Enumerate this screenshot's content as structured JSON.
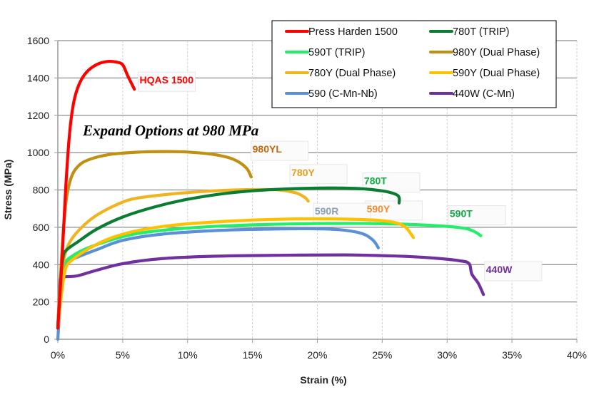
{
  "chart_data": {
    "type": "line",
    "title": "",
    "annotation_title": "Expand Options at 980 MPa",
    "xlabel": "Strain (%)",
    "ylabel": "Stress (MPa)",
    "xlim": [
      0,
      40
    ],
    "ylim": [
      0,
      1600
    ],
    "x_ticks": [
      0,
      5,
      10,
      15,
      20,
      25,
      30,
      35,
      40
    ],
    "x_tick_labels": [
      "0%",
      "5%",
      "10%",
      "15%",
      "20%",
      "25%",
      "30%",
      "35%",
      "40%"
    ],
    "y_ticks": [
      0,
      200,
      400,
      600,
      800,
      1000,
      1200,
      1400,
      1600
    ],
    "y_tick_labels": [
      "0",
      "200",
      "400",
      "600",
      "800",
      "1000",
      "1200",
      "1400",
      "1600"
    ],
    "grid": {
      "horizontal": true,
      "vertical": true
    },
    "legend_position": "top-right",
    "series": [
      {
        "name": "Press Harden 1500",
        "label": "HQAS 1500",
        "color": "#ff0000",
        "label_color": "#ff0000",
        "label_at": [
          6.3,
          1370
        ],
        "points": [
          [
            0.0,
            60
          ],
          [
            0.3,
            400
          ],
          [
            0.6,
            800
          ],
          [
            0.9,
            1100
          ],
          [
            1.2,
            1260
          ],
          [
            1.6,
            1360
          ],
          [
            2.2,
            1430
          ],
          [
            3.0,
            1472
          ],
          [
            3.8,
            1488
          ],
          [
            4.5,
            1485
          ],
          [
            5.0,
            1470
          ],
          [
            5.4,
            1410
          ],
          [
            5.9,
            1340
          ]
        ]
      },
      {
        "name": "780T (TRIP)",
        "label": "780T",
        "color": "#0a7d32",
        "label_color": "#12b24a",
        "label_at": [
          23.6,
          830
        ],
        "points": [
          [
            0.0,
            60
          ],
          [
            0.2,
            300
          ],
          [
            0.4,
            440
          ],
          [
            0.7,
            480
          ],
          [
            1.5,
            520
          ],
          [
            3,
            590
          ],
          [
            5,
            655
          ],
          [
            7.5,
            710
          ],
          [
            10,
            750
          ],
          [
            13,
            782
          ],
          [
            16,
            800
          ],
          [
            20,
            810
          ],
          [
            23,
            808
          ],
          [
            25,
            795
          ],
          [
            26,
            778
          ],
          [
            26.3,
            760
          ],
          [
            26.3,
            730
          ]
        ]
      },
      {
        "name": "590T (TRIP)",
        "label": "590T",
        "color": "#22ee6a",
        "label_color": "#12a84a",
        "label_at": [
          30.2,
          655
        ],
        "points": [
          [
            0.0,
            60
          ],
          [
            0.2,
            300
          ],
          [
            0.4,
            390
          ],
          [
            0.8,
            430
          ],
          [
            2,
            480
          ],
          [
            4,
            530
          ],
          [
            6,
            565
          ],
          [
            9,
            590
          ],
          [
            13,
            608
          ],
          [
            18,
            618
          ],
          [
            24,
            620
          ],
          [
            28,
            613
          ],
          [
            31,
            598
          ],
          [
            32.0,
            580
          ],
          [
            32.6,
            555
          ]
        ]
      },
      {
        "name": "980Y (Dual Phase)",
        "label": "980YL",
        "color": "#c09010",
        "label_color": "#c06a10",
        "label_at": [
          15.0,
          1000
        ],
        "points": [
          [
            0.0,
            60
          ],
          [
            0.3,
            450
          ],
          [
            0.6,
            720
          ],
          [
            1.0,
            860
          ],
          [
            1.6,
            930
          ],
          [
            2.5,
            965
          ],
          [
            4,
            990
          ],
          [
            6,
            1002
          ],
          [
            8,
            1006
          ],
          [
            10,
            1003
          ],
          [
            12,
            990
          ],
          [
            13.5,
            965
          ],
          [
            14.5,
            920
          ],
          [
            14.9,
            870
          ]
        ]
      },
      {
        "name": "780Y (Dual Phase)",
        "label": "780Y",
        "color": "#f0b41e",
        "label_color": "#e0a020",
        "label_at": [
          18.0,
          875
        ],
        "points": [
          [
            0.0,
            60
          ],
          [
            0.2,
            300
          ],
          [
            0.5,
            440
          ],
          [
            1,
            530
          ],
          [
            2,
            610
          ],
          [
            3,
            665
          ],
          [
            4.5,
            720
          ],
          [
            6,
            755
          ],
          [
            9,
            780
          ],
          [
            12,
            795
          ],
          [
            15,
            802
          ],
          [
            17,
            800
          ],
          [
            18.3,
            785
          ],
          [
            19.0,
            762
          ],
          [
            19.3,
            740
          ]
        ]
      },
      {
        "name": "590Y (Dual Phase)",
        "label": "590Y",
        "color": "#ffc000",
        "label_color": "#f08c30",
        "label_at": [
          23.8,
          680
        ],
        "points": [
          [
            0.0,
            60
          ],
          [
            0.3,
            250
          ],
          [
            0.6,
            380
          ],
          [
            1.2,
            430
          ],
          [
            2.5,
            490
          ],
          [
            4,
            540
          ],
          [
            6,
            580
          ],
          [
            9,
            612
          ],
          [
            13,
            632
          ],
          [
            17,
            643
          ],
          [
            21,
            645
          ],
          [
            24.5,
            638
          ],
          [
            26,
            625
          ],
          [
            26.8,
            600
          ],
          [
            27.4,
            545
          ]
        ]
      },
      {
        "name": "590 (C-Mn-Nb)",
        "label": "590R",
        "color": "#5b8fd6",
        "label_color": "#8ca0b8",
        "label_at": [
          19.8,
          668
        ],
        "points": [
          [
            0.0,
            0
          ],
          [
            0.2,
            220
          ],
          [
            0.4,
            360
          ],
          [
            0.8,
            415
          ],
          [
            1.5,
            440
          ],
          [
            3,
            480
          ],
          [
            5,
            530
          ],
          [
            8,
            563
          ],
          [
            12,
            582
          ],
          [
            16,
            590
          ],
          [
            20,
            592
          ],
          [
            22,
            585
          ],
          [
            23.5,
            565
          ],
          [
            24.3,
            530
          ],
          [
            24.7,
            490
          ]
        ]
      },
      {
        "name": "440W (C-Mn)",
        "label": "440W",
        "color": "#7030a0",
        "label_color": "#7030a0",
        "label_at": [
          33.0,
          355
        ],
        "points": [
          [
            0.0,
            70
          ],
          [
            0.1,
            200
          ],
          [
            0.2,
            330
          ],
          [
            0.5,
            335
          ],
          [
            1.5,
            340
          ],
          [
            3,
            370
          ],
          [
            5,
            405
          ],
          [
            8,
            432
          ],
          [
            12,
            445
          ],
          [
            17,
            450
          ],
          [
            22,
            452
          ],
          [
            26,
            446
          ],
          [
            29,
            435
          ],
          [
            31,
            420
          ],
          [
            31.7,
            405
          ],
          [
            31.9,
            350
          ],
          [
            32.4,
            300
          ],
          [
            32.8,
            240
          ]
        ]
      }
    ]
  }
}
